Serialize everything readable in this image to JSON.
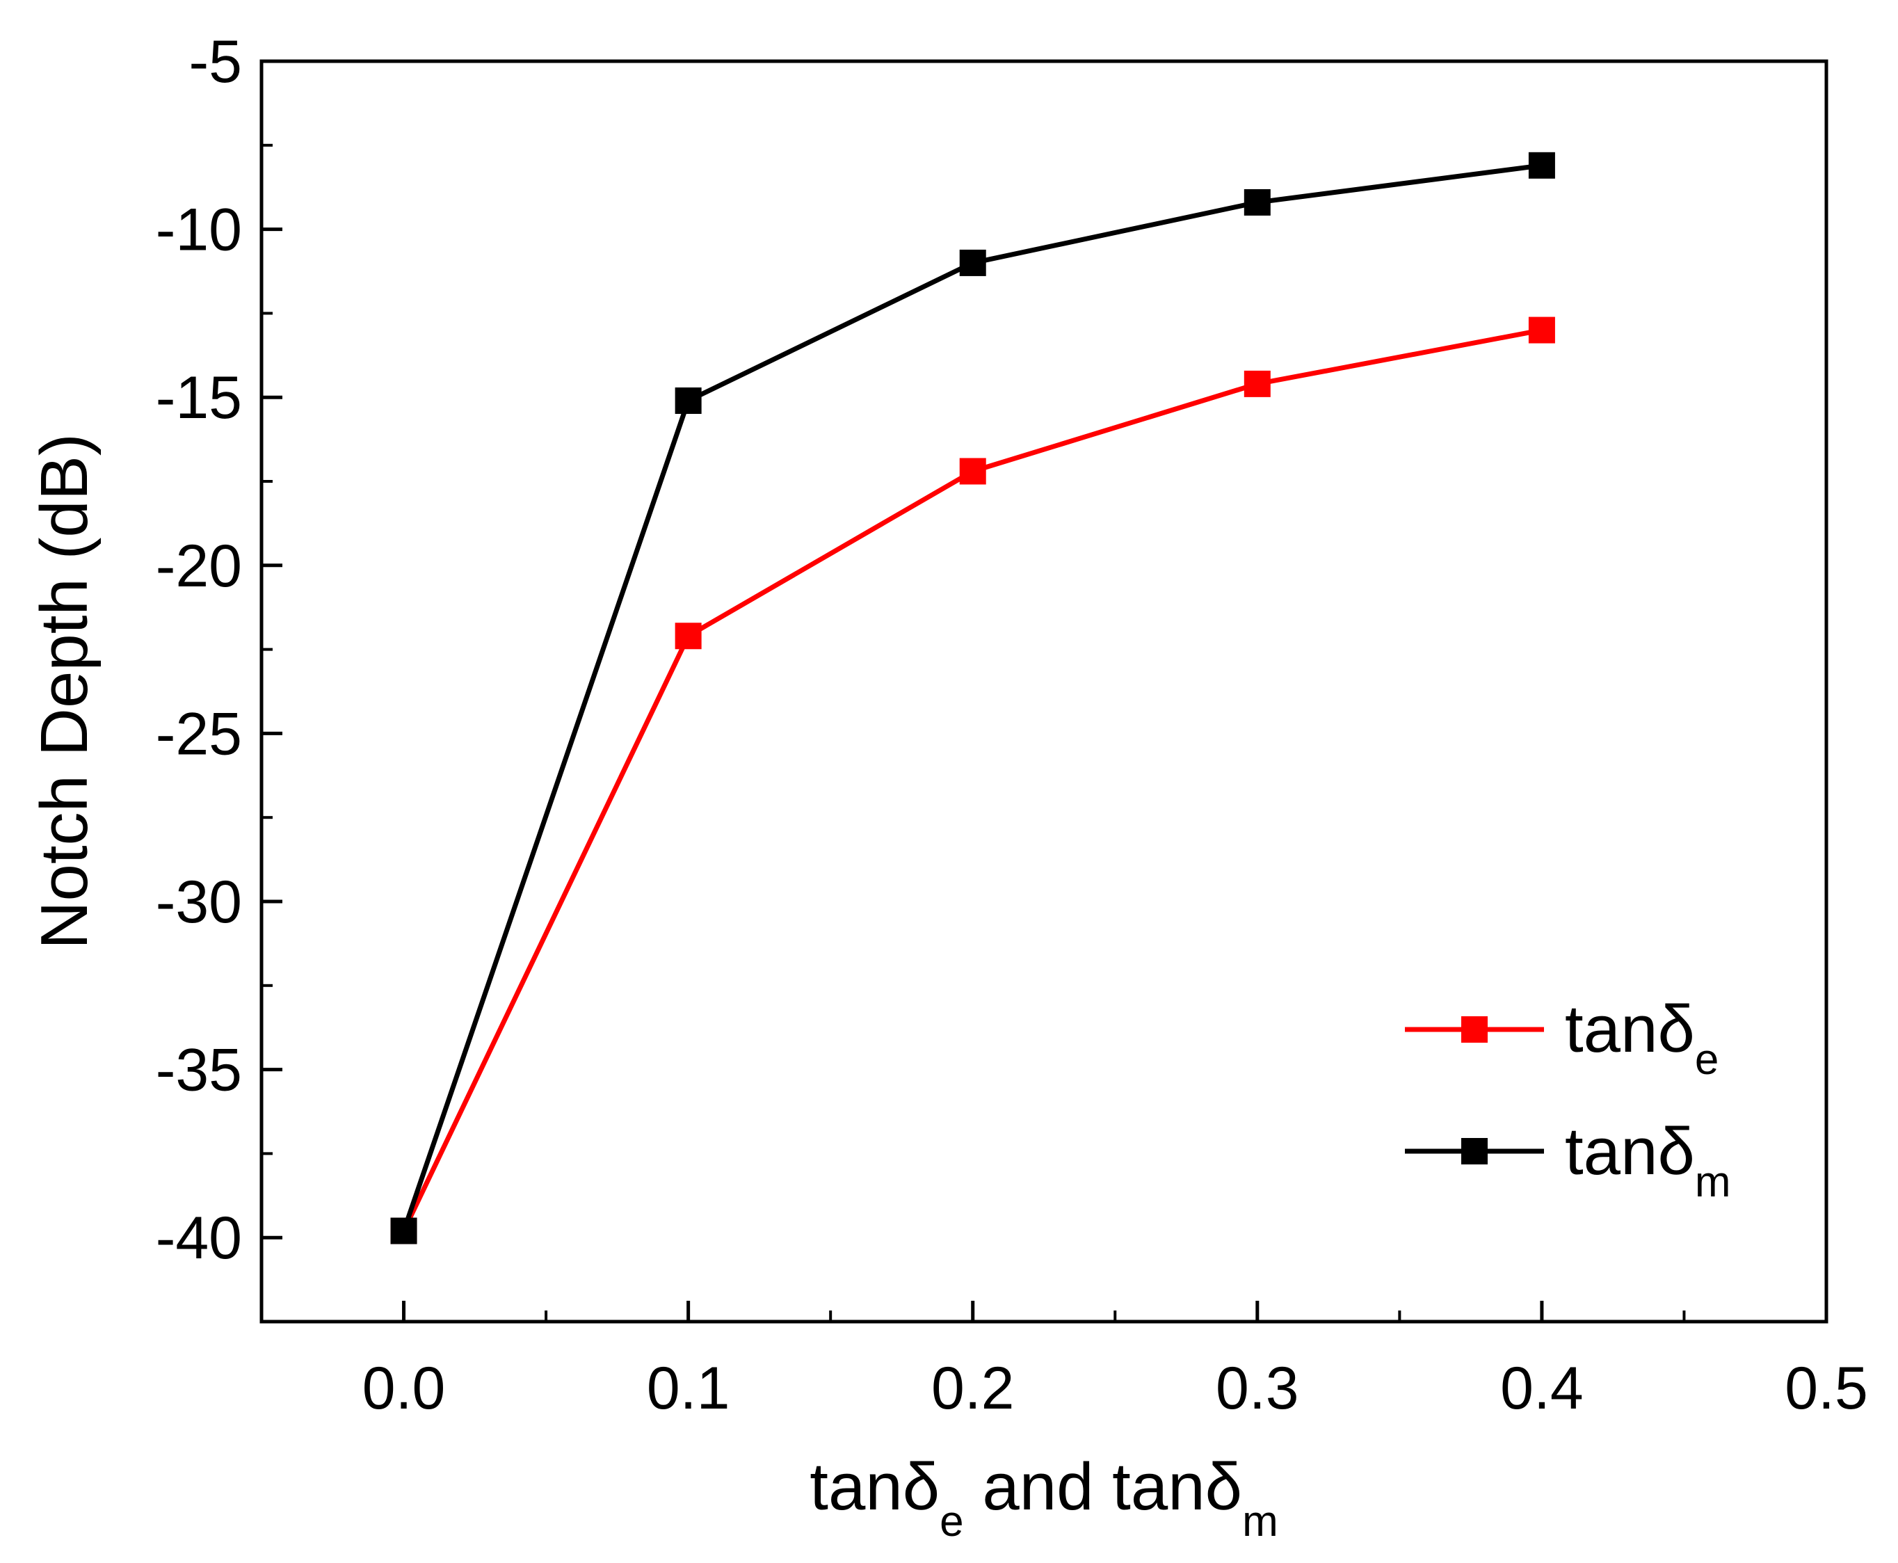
{
  "chart_data": {
    "type": "line",
    "title": "",
    "xlabel": {
      "main": "tanδ",
      "sub1": "e",
      "mid": " and tanδ",
      "sub2": "m"
    },
    "ylabel": "Notch Depth (dB)",
    "xlim": [
      -0.05,
      0.5
    ],
    "ylim": [
      -42.5,
      -5
    ],
    "x_ticks": [
      0.0,
      0.1,
      0.2,
      0.3,
      0.4,
      0.5
    ],
    "x_tick_labels": [
      "0.0",
      "0.1",
      "0.2",
      "0.3",
      "0.4",
      "0.5"
    ],
    "y_ticks": [
      -40,
      -35,
      -30,
      -25,
      -20,
      -15,
      -10,
      -5
    ],
    "y_tick_labels": [
      "-40",
      "-35",
      "-30",
      "-25",
      "-20",
      "-15",
      "-10",
      "-5"
    ],
    "grid": false,
    "legend_position": "bottom-right",
    "x": [
      0.0,
      0.1,
      0.2,
      0.3,
      0.4
    ],
    "series": [
      {
        "name": "tanδ",
        "sub": "e",
        "color": "#ff0000",
        "marker": "square",
        "values": [
          -39.8,
          -22.1,
          -17.2,
          -14.6,
          -13.0
        ]
      },
      {
        "name": "tanδ",
        "sub": "m",
        "color": "#000000",
        "marker": "square",
        "values": [
          -39.8,
          -15.1,
          -11.0,
          -9.2,
          -8.1
        ]
      }
    ]
  }
}
